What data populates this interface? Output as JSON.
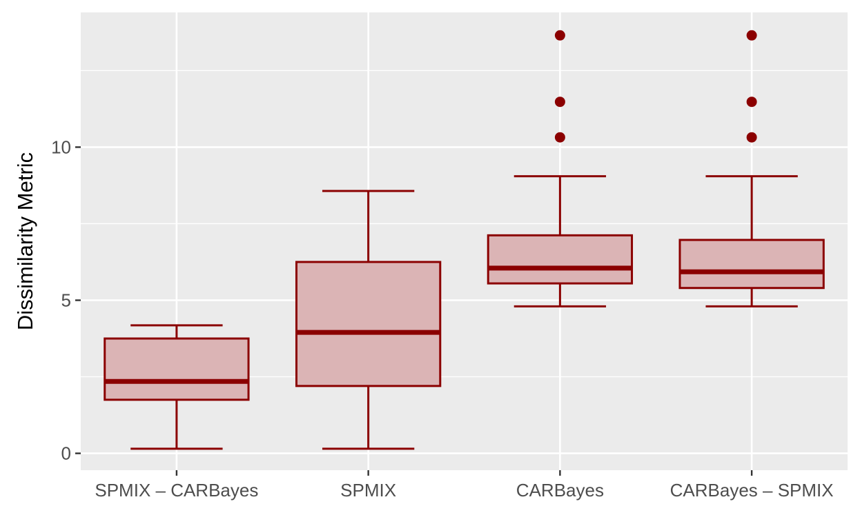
{
  "chart_data": {
    "type": "boxplot",
    "ylabel": "Dissimilarity Metric",
    "xlabel": "",
    "ylim": [
      -0.55,
      14.4
    ],
    "y_ticks": [
      0,
      5,
      10
    ],
    "y_tick_labels": [
      "0",
      "5",
      "10"
    ],
    "grid": true,
    "categories": [
      "SPMIX – CARBayes",
      "SPMIX",
      "CARBayes",
      "CARBayes – SPMIX"
    ],
    "boxes": [
      {
        "category": "SPMIX – CARBayes",
        "whisker_low": 0.15,
        "q1": 1.75,
        "median": 2.35,
        "q3": 3.75,
        "whisker_high": 4.18,
        "outliers": []
      },
      {
        "category": "SPMIX",
        "whisker_low": 0.15,
        "q1": 2.2,
        "median": 3.95,
        "q3": 6.25,
        "whisker_high": 8.57,
        "outliers": []
      },
      {
        "category": "CARBayes",
        "whisker_low": 4.8,
        "q1": 5.55,
        "median": 6.05,
        "q3": 7.12,
        "whisker_high": 9.05,
        "outliers": [
          10.32,
          11.48,
          13.65
        ]
      },
      {
        "category": "CARBayes – SPMIX",
        "whisker_low": 4.8,
        "q1": 5.4,
        "median": 5.93,
        "q3": 6.97,
        "whisker_high": 9.05,
        "outliers": [
          10.32,
          11.48,
          13.65
        ]
      }
    ],
    "colors": {
      "panel_background": "#ebebeb",
      "gridline": "#ffffff",
      "box_stroke": "#8b0000",
      "box_fill": "#dbb4b5",
      "outlier": "#8b0000"
    }
  }
}
